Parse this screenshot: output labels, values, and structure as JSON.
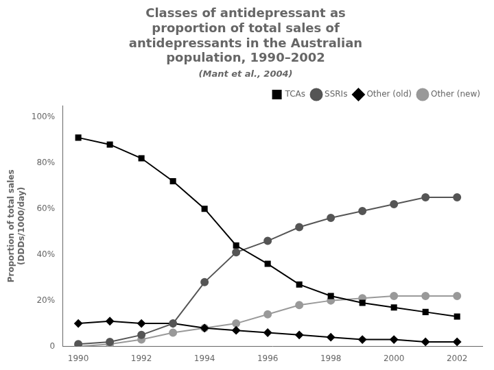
{
  "chart_data": {
    "type": "line",
    "title": "Classes of antidepressant as\nproportion of total sales of\nantidepressants in the Australian\npopulation, 1990–2002",
    "subtitle": "(Mant et al., 2004)",
    "ylabel": "Proportion of total sales\n(DDDs/1000/day)",
    "x": [
      1990,
      1991,
      1992,
      1993,
      1994,
      1995,
      1996,
      1997,
      1998,
      1999,
      2000,
      2001,
      2002
    ],
    "series": [
      {
        "name": "TCAs",
        "color": "#000000",
        "marker": "square",
        "values": [
          91,
          88,
          82,
          72,
          60,
          44,
          36,
          27,
          22,
          19,
          17,
          15,
          13
        ]
      },
      {
        "name": "SSRIs",
        "color": "#555555",
        "marker": "circle",
        "values": [
          1,
          2,
          5,
          10,
          28,
          41,
          46,
          52,
          56,
          59,
          62,
          65,
          65
        ]
      },
      {
        "name": "Other (old)",
        "color": "#000000",
        "marker": "diamond",
        "values": [
          10,
          11,
          10,
          10,
          8,
          7,
          6,
          5,
          4,
          3,
          3,
          2,
          2
        ]
      },
      {
        "name": "Other (new)",
        "color": "#999999",
        "marker": "circle",
        "values": [
          0,
          1,
          3,
          6,
          8,
          10,
          14,
          18,
          20,
          21,
          22,
          22,
          22
        ]
      }
    ],
    "xlim": [
      1989.5,
      2002.8
    ],
    "xticks": [
      1990,
      1992,
      1994,
      1996,
      1998,
      2000,
      2002
    ],
    "ylim": [
      0,
      105
    ],
    "yticks": [
      0,
      {
        "value": 20,
        "label": "20%"
      },
      {
        "value": 40,
        "label": "40%"
      },
      {
        "value": 60,
        "label": "60%"
      },
      {
        "value": 80,
        "label": "80%"
      },
      {
        "value": 100,
        "label": "100%"
      }
    ],
    "grid": false,
    "legend": "upper right"
  }
}
